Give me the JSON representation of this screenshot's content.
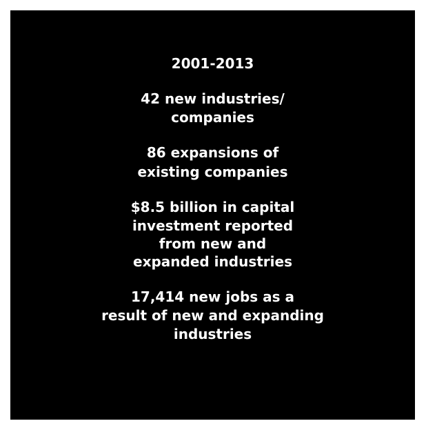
{
  "year_range": "2001-2013",
  "stats": [
    {
      "lines": [
        "42 new industries/",
        "companies"
      ]
    },
    {
      "lines": [
        "86 expansions of",
        "existing companies"
      ]
    },
    {
      "lines": [
        "$8.5 billion in capital",
        "investment reported",
        "from new and",
        "expanded industries"
      ]
    },
    {
      "lines": [
        "17,414 new jobs as a",
        "result of new  and expanding",
        "industries"
      ]
    }
  ],
  "colors": {
    "background": "#000000",
    "text": "#ffffff",
    "frame": "#ffffff"
  }
}
